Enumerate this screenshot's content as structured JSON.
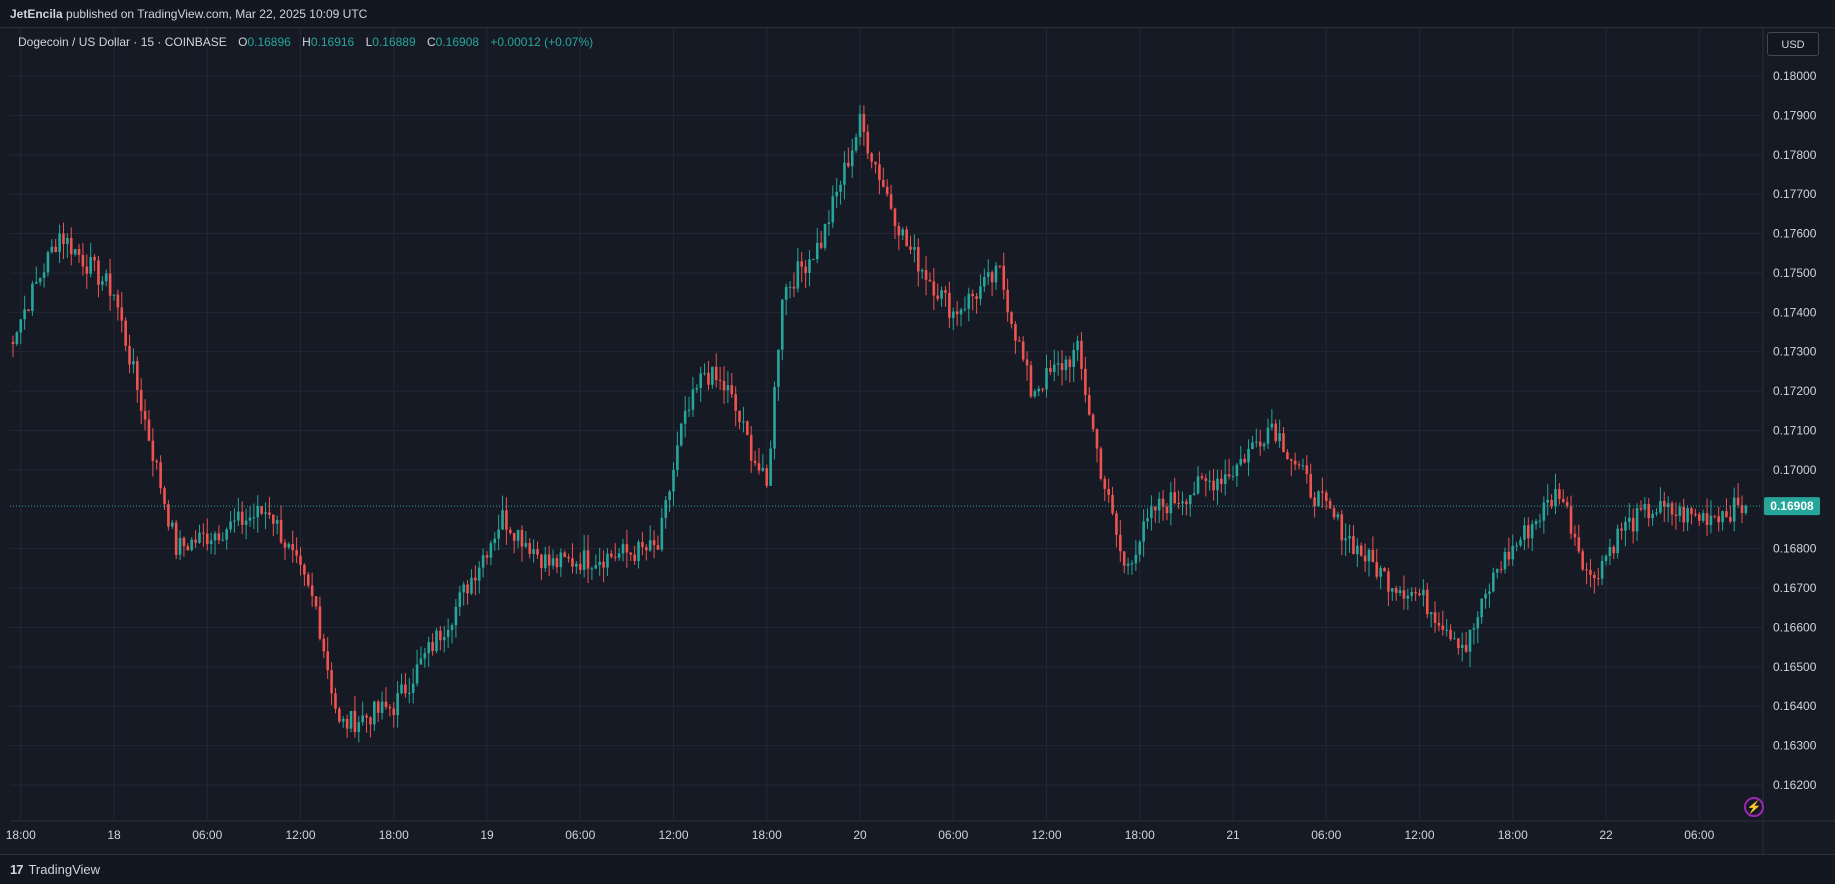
{
  "header": {
    "author": "JetEncila",
    "published_text": "published on TradingView.com, Mar 22, 2025 10:09 UTC"
  },
  "legend": {
    "symbol": "Dogecoin / US Dollar · 15 · COINBASE",
    "o_label": "O",
    "o_value": "0.16896",
    "h_label": "H",
    "h_value": "0.16916",
    "l_label": "L",
    "l_value": "0.16889",
    "c_label": "C",
    "c_value": "0.16908",
    "change": "+0.00012 (+0.07%)"
  },
  "currency_button": "USD",
  "footer": {
    "brand": "TradingView",
    "logo_icon": "tradingview-logo-icon"
  },
  "colors": {
    "up": "#26a69a",
    "down": "#ef5350",
    "background": "#161a25",
    "grid": "#232734",
    "price_label_bg": "#26a69a"
  },
  "chart_data": {
    "type": "candlestick",
    "title": "Dogecoin / US Dollar · 15 · COINBASE",
    "ylim": [
      0.1615,
      0.182
    ],
    "y_ticks": [
      "0.18000",
      "0.17900",
      "0.17800",
      "0.17700",
      "0.17600",
      "0.17500",
      "0.17400",
      "0.17300",
      "0.17200",
      "0.17100",
      "0.17000",
      "0.16800",
      "0.16700",
      "0.16600",
      "0.16500",
      "0.16400",
      "0.16300",
      "0.16200"
    ],
    "x_tick_labels": [
      "18:00",
      "18",
      "06:00",
      "12:00",
      "18:00",
      "19",
      "06:00",
      "12:00",
      "18:00",
      "20",
      "06:00",
      "12:00",
      "18:00",
      "21",
      "06:00",
      "12:00",
      "18:00",
      "22",
      "06:00"
    ],
    "last_price": "0.16908",
    "grid": true,
    "key_points": [
      {
        "t": "Mar 17 17:00",
        "close": 0.173
      },
      {
        "t": "Mar 17 20:30",
        "close": 0.176
      },
      {
        "t": "Mar 18 00:00",
        "close": 0.1745
      },
      {
        "t": "Mar 18 04:00",
        "close": 0.168
      },
      {
        "t": "Mar 18 10:00",
        "close": 0.169
      },
      {
        "t": "Mar 18 13:00",
        "close": 0.1665
      },
      {
        "t": "Mar 18 14:30",
        "close": 0.1635
      },
      {
        "t": "Mar 18 18:00",
        "close": 0.164
      },
      {
        "t": "Mar 18 22:00",
        "close": 0.1665
      },
      {
        "t": "Mar 19 01:00",
        "close": 0.1688
      },
      {
        "t": "Mar 19 04:00",
        "close": 0.1676
      },
      {
        "t": "Mar 19 11:00",
        "close": 0.168
      },
      {
        "t": "Mar 19 12:30",
        "close": 0.171
      },
      {
        "t": "Mar 19 14:00",
        "close": 0.1725
      },
      {
        "t": "Mar 19 15:30",
        "close": 0.172
      },
      {
        "t": "Mar 19 18:00",
        "close": 0.1695
      },
      {
        "t": "Mar 19 19:00",
        "close": 0.1745
      },
      {
        "t": "Mar 19 21:30",
        "close": 0.1758
      },
      {
        "t": "Mar 20 00:00",
        "close": 0.1788
      },
      {
        "t": "Mar 20 03:00",
        "close": 0.1757
      },
      {
        "t": "Mar 20 06:00",
        "close": 0.174
      },
      {
        "t": "Mar 20 09:00",
        "close": 0.175
      },
      {
        "t": "Mar 20 11:00",
        "close": 0.172
      },
      {
        "t": "Mar 20 14:00",
        "close": 0.173
      },
      {
        "t": "Mar 20 15:30",
        "close": 0.17
      },
      {
        "t": "Mar 20 17:00",
        "close": 0.1675
      },
      {
        "t": "Mar 20 19:00",
        "close": 0.169
      },
      {
        "t": "Mar 21 00:00",
        "close": 0.17
      },
      {
        "t": "Mar 21 02:30",
        "close": 0.1712
      },
      {
        "t": "Mar 21 05:00",
        "close": 0.1695
      },
      {
        "t": "Mar 21 08:00",
        "close": 0.168
      },
      {
        "t": "Mar 21 10:00",
        "close": 0.1672
      },
      {
        "t": "Mar 21 12:00",
        "close": 0.1668
      },
      {
        "t": "Mar 21 15:00",
        "close": 0.1655
      },
      {
        "t": "Mar 21 17:00",
        "close": 0.1675
      },
      {
        "t": "Mar 21 19:00",
        "close": 0.1685
      },
      {
        "t": "Mar 21 21:00",
        "close": 0.1695
      },
      {
        "t": "Mar 21 23:00",
        "close": 0.1672
      },
      {
        "t": "Mar 22 01:00",
        "close": 0.1685
      },
      {
        "t": "Mar 22 03:00",
        "close": 0.169
      },
      {
        "t": "Mar 22 06:00",
        "close": 0.1688
      },
      {
        "t": "Mar 22 09:00",
        "close": 0.16908
      }
    ]
  }
}
